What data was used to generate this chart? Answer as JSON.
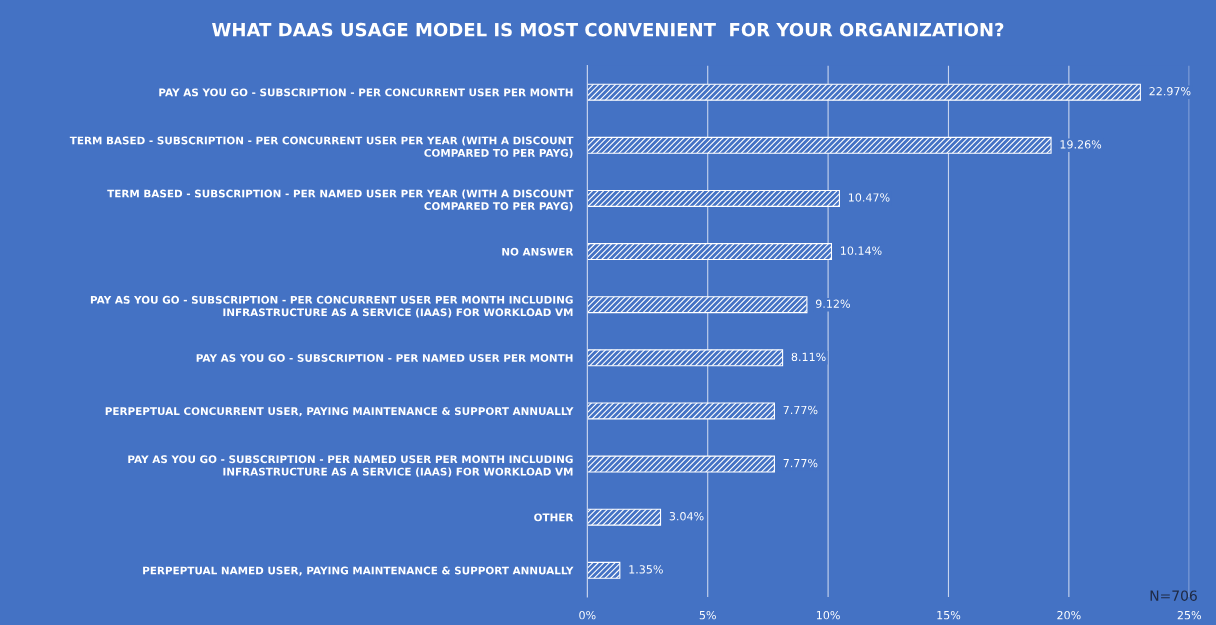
{
  "chart_data": {
    "type": "bar",
    "orientation": "horizontal",
    "title": "WHAT DAAS USAGE MODEL IS MOST CONVENIENT  FOR YOUR ORGANIZATION?",
    "categories": [
      "PAY AS YOU GO - SUBSCRIPTION - PER CONCURRENT USER PER MONTH",
      "TERM BASED - SUBSCRIPTION - PER CONCURRENT USER PER YEAR (WITH A DISCOUNT\nCOMPARED TO PER PAYG)",
      "TERM BASED - SUBSCRIPTION - PER NAMED USER PER YEAR (WITH A DISCOUNT\nCOMPARED TO PER PAYG)",
      "NO ANSWER",
      "PAY AS YOU GO - SUBSCRIPTION - PER CONCURRENT USER PER MONTH INCLUDING\nINFRASTRUCTURE AS A SERVICE (IAAS) FOR WORKLOAD VM",
      "PAY AS YOU GO - SUBSCRIPTION - PER NAMED USER PER MONTH",
      "PERPEPTUAL CONCURRENT USER, PAYING MAINTENANCE & SUPPORT ANNUALLY",
      "PAY AS YOU GO - SUBSCRIPTION - PER NAMED USER PER MONTH INCLUDING\nINFRASTRUCTURE AS A SERVICE (IAAS) FOR WORKLOAD VM",
      "OTHER",
      "PERPEPTUAL NAMED USER, PAYING MAINTENANCE & SUPPORT ANNUALLY"
    ],
    "values": [
      22.97,
      19.26,
      10.47,
      10.14,
      9.12,
      8.11,
      7.77,
      7.77,
      3.04,
      1.35
    ],
    "value_labels": [
      "22.97%",
      "19.26%",
      "10.47%",
      "10.14%",
      "9.12%",
      "8.11%",
      "7.77%",
      "7.77%",
      "3.04%",
      "1.35%"
    ],
    "color": "#ffffff",
    "xlim": [
      0,
      25
    ],
    "xticks": [
      {
        "value": 0,
        "label": "0%"
      },
      {
        "value": 5,
        "label": "5%"
      },
      {
        "value": 10,
        "label": "10%"
      },
      {
        "value": 15,
        "label": "15%"
      },
      {
        "value": 20,
        "label": "20%"
      },
      {
        "value": 25,
        "label": "25%"
      }
    ],
    "grid": "x",
    "annotations": [
      "N=706"
    ]
  }
}
